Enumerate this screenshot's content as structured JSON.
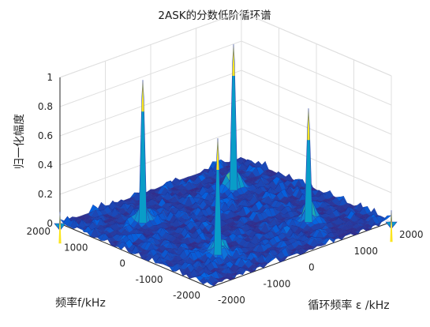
{
  "chart_data": {
    "type": "surface3d",
    "title": "2ASK的分数低阶循环谱",
    "xlabel": "循环频率 ε /kHz",
    "ylabel": "频率f/kHz",
    "zlabel": "归一化幅度",
    "xlim": [
      -2000,
      2000
    ],
    "ylim": [
      -2000,
      2000
    ],
    "zlim": [
      0,
      1
    ],
    "xticks": [
      "-2000",
      "-1000",
      "0",
      "1000",
      "2000"
    ],
    "yticks": [
      "-2000",
      "-1000",
      "0",
      "1000",
      "2000"
    ],
    "zticks": [
      "0",
      "0.2",
      "0.4",
      "0.6",
      "0.8",
      "1"
    ],
    "grid": true,
    "colormap": "parula",
    "peaks": [
      {
        "x": -1000,
        "y": 1000,
        "z": 0.98
      },
      {
        "x": 1000,
        "y": 1000,
        "z": 1.0
      },
      {
        "x": -1000,
        "y": -1000,
        "z": 0.8
      },
      {
        "x": 1000,
        "y": -1000,
        "z": 0.78
      },
      {
        "x": -2000,
        "y": 2000,
        "z": 0.08
      },
      {
        "x": 2000,
        "y": -2000,
        "z": 0.08
      }
    ],
    "noise_floor": 0.05
  }
}
